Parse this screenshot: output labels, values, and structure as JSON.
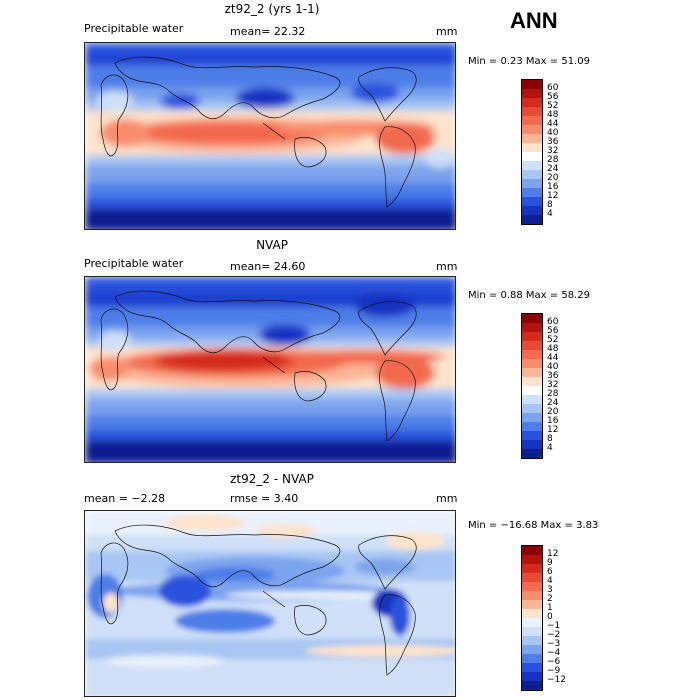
{
  "season": "ANN",
  "panels": [
    {
      "id": "model",
      "title": "zt92_2 (yrs 1-1)",
      "left_label": "Precipitable water",
      "center_label": "mean=  22.32",
      "units": "mm",
      "stats": "Min =    0.23 Max =   51.09",
      "colorbar": {
        "levels": [
          "60",
          "56",
          "52",
          "48",
          "44",
          "40",
          "36",
          "32",
          "28",
          "24",
          "20",
          "16",
          "12",
          "8",
          "4"
        ],
        "colors": [
          "#8b0000",
          "#b3120e",
          "#d42b1e",
          "#e94a33",
          "#f26b4e",
          "#f88d6c",
          "#fbb597",
          "#fde3cc",
          "#ffffff",
          "#cfe0f8",
          "#a8c6f3",
          "#7ca3ee",
          "#4e7ee8",
          "#2a52dd",
          "#1632c2",
          "#0b1f90"
        ]
      }
    },
    {
      "id": "obs",
      "title": "NVAP",
      "left_label": "Precipitable water",
      "center_label": "mean=  24.60",
      "units": "mm",
      "stats": "Min =    0.88 Max =   58.29",
      "colorbar": {
        "levels": [
          "60",
          "56",
          "52",
          "48",
          "44",
          "40",
          "36",
          "32",
          "28",
          "24",
          "20",
          "16",
          "12",
          "8",
          "4"
        ],
        "colors": [
          "#8b0000",
          "#b3120e",
          "#d42b1e",
          "#e94a33",
          "#f26b4e",
          "#f88d6c",
          "#fbb597",
          "#fde3cc",
          "#ffffff",
          "#cfe0f8",
          "#a8c6f3",
          "#7ca3ee",
          "#4e7ee8",
          "#2a52dd",
          "#1632c2",
          "#0b1f90"
        ]
      }
    },
    {
      "id": "diff",
      "title": "zt92_2 - NVAP",
      "left_label": "mean =   −2.28",
      "center_label": "rmse =    3.40",
      "units": "mm",
      "stats": "Min = −16.68 Max =    3.83",
      "colorbar": {
        "levels": [
          "12",
          "9",
          "6",
          "4",
          "3",
          "2",
          "1",
          "0",
          "−1",
          "−2",
          "−3",
          "−4",
          "−6",
          "−9",
          "−12"
        ],
        "colors": [
          "#8b0000",
          "#b3120e",
          "#d42b1e",
          "#e94a33",
          "#f26b4e",
          "#f88d6c",
          "#fbb597",
          "#fde3cc",
          "#e9f1fc",
          "#cfe0f8",
          "#a8c6f3",
          "#7ca3ee",
          "#4e7ee8",
          "#2a52dd",
          "#1632c2",
          "#0b1f90"
        ]
      }
    }
  ]
}
